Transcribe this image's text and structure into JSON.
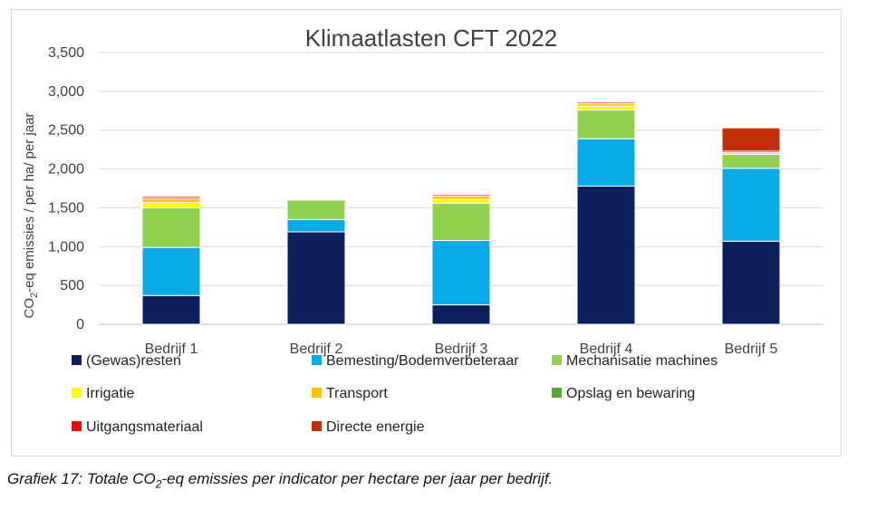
{
  "chart_data": {
    "type": "bar",
    "stacked": true,
    "title": "Klimaatlasten CFT 2022",
    "ylabel_parts": [
      "CO",
      "2",
      "-eq emissies / per ha/ per  jaar"
    ],
    "ylim": [
      0,
      3500
    ],
    "yticks": [
      0,
      500,
      1000,
      1500,
      2000,
      2500,
      3000,
      3500
    ],
    "ytick_labels": [
      "0",
      "500",
      "1,000",
      "1,500",
      "2,000",
      "2,500",
      "3,000",
      "3,500"
    ],
    "categories": [
      "Bedrijf 1",
      "Bedrijf 2",
      "Bedrijf 3",
      "Bedrijf 4",
      "Bedrijf 5"
    ],
    "grid": true,
    "legend_position": "bottom",
    "series": [
      {
        "name": "(Gewas)resten",
        "color": "#0d1f5c",
        "values": [
          370,
          1190,
          250,
          1780,
          1070
        ]
      },
      {
        "name": "Bemesting/Bodemverbeteraar",
        "color": "#0aaae6",
        "values": [
          620,
          160,
          830,
          610,
          940
        ]
      },
      {
        "name": "Mechanisatie machines",
        "color": "#92d050",
        "values": [
          510,
          250,
          480,
          370,
          180
        ]
      },
      {
        "name": "Irrigatie",
        "color": "#ffff00",
        "values": [
          70,
          0,
          50,
          50,
          0
        ]
      },
      {
        "name": "Transport",
        "color": "#ffc000",
        "values": [
          40,
          0,
          40,
          30,
          20
        ]
      },
      {
        "name": "Opslag en bewaring",
        "color": "#4caf2a",
        "values": [
          0,
          0,
          0,
          0,
          0
        ]
      },
      {
        "name": "Uitgangsmateriaal",
        "color": "#ff0000",
        "values": [
          20,
          0,
          20,
          20,
          20
        ]
      },
      {
        "name": "Directe energie",
        "color": "#c0300a",
        "values": [
          20,
          0,
          10,
          10,
          300
        ]
      }
    ]
  },
  "caption": {
    "prefix": "Grafiek 17: Totale CO",
    "sub": "2",
    "suffix": "-eq emissies per indicator per hectare per jaar per bedrijf."
  }
}
